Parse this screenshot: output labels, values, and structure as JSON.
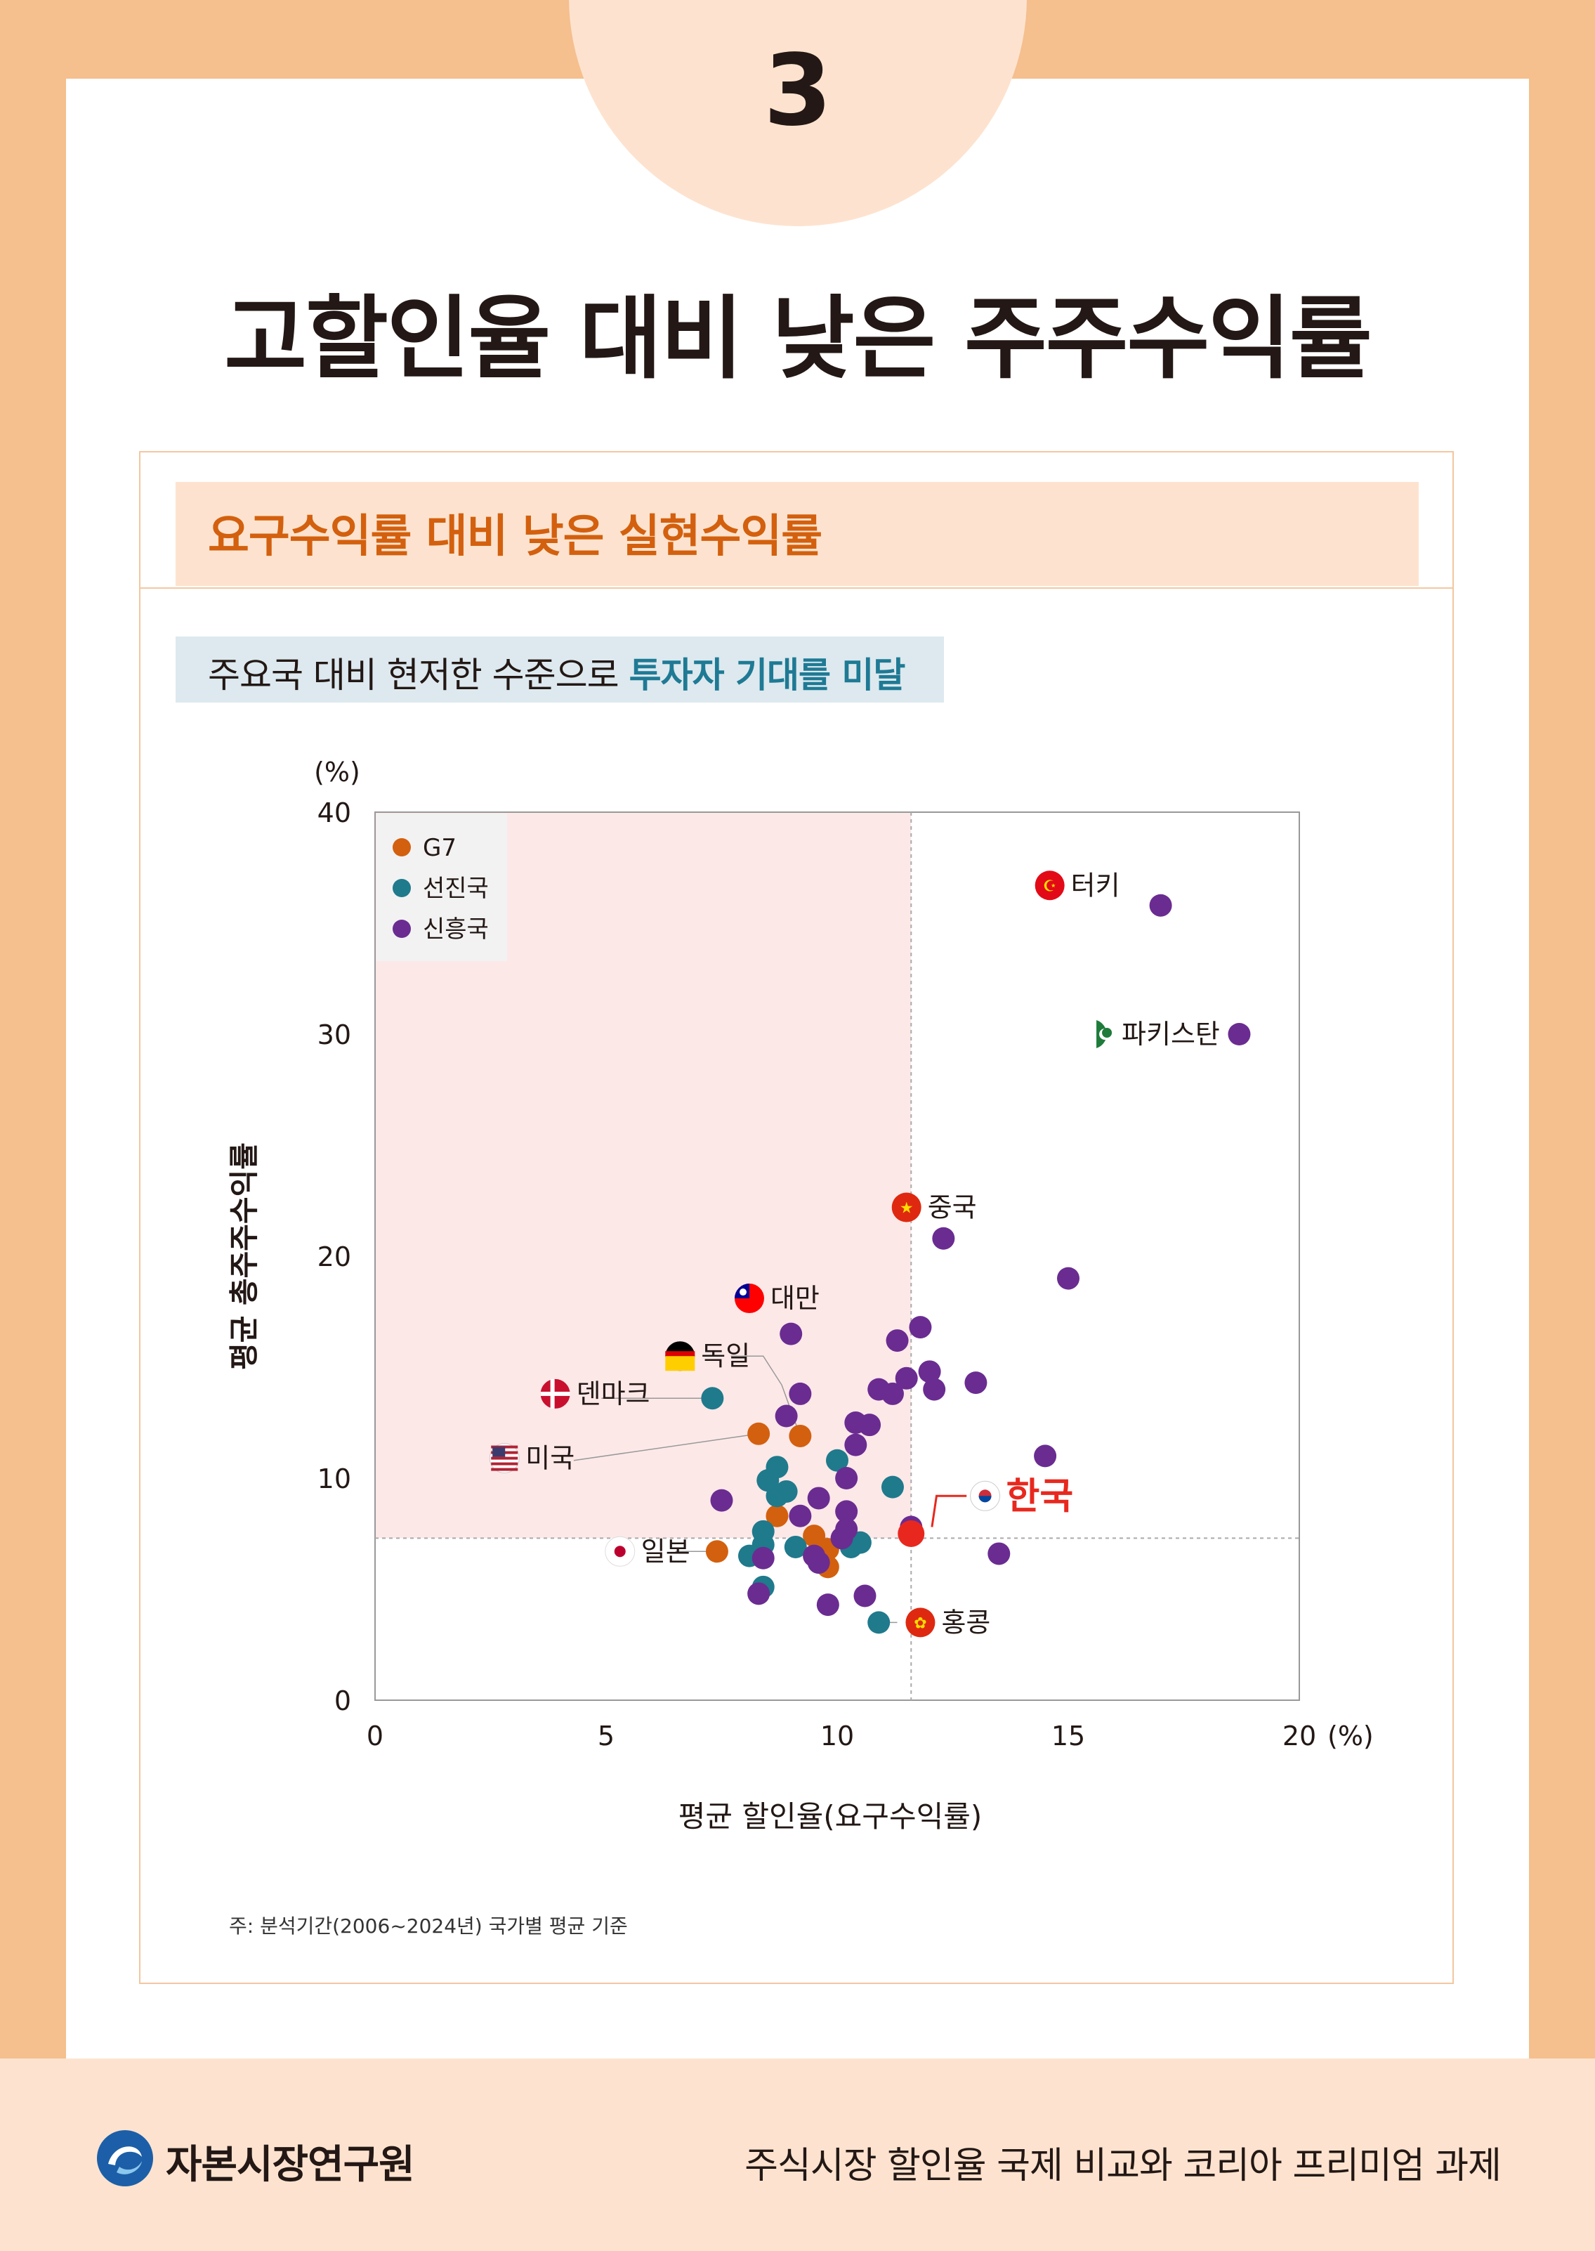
{
  "page": {
    "section_number": "3",
    "title": "고할인율 대비 낮은 주주수익률",
    "box_title": "요구수익률 대비 낮은 실현수익률",
    "subtitle_prefix": "주요국 대비 현저한 수준으로 ",
    "subtitle_highlight": "투자자 기대를 미달",
    "note": "주: 분석기간(2006~2024년) 국가별 평균 기준"
  },
  "footer": {
    "org_name": "자본시장연구원",
    "publication": "주식시장 할인율 국제 비교와 코리아 프리미엄 과제"
  },
  "colors": {
    "g7": "#D3600E",
    "advanced": "#1F7A8C",
    "emerging": "#6A2C91",
    "korea": "#E8281E",
    "quadrant": "#FDE8E8",
    "accent_title": "#D3600E",
    "accent_subtitle": "#1F7A94"
  },
  "chart_data": {
    "type": "scatter",
    "xlabel": "평균 할인율(요구수익률)",
    "ylabel": "평균 총주주수익률",
    "x_unit": "(%)",
    "y_unit": "(%)",
    "xlim": [
      0,
      20
    ],
    "ylim": [
      0,
      40
    ],
    "xticks": [
      "0",
      "5",
      "10",
      "15",
      "20"
    ],
    "yticks": [
      "0",
      "10",
      "20",
      "30",
      "40"
    ],
    "grid": false,
    "reference_lines": {
      "x": 11.6,
      "y": 7.3
    },
    "legend_position": "top-left",
    "legend": [
      "G7",
      "선진국",
      "신흥국"
    ],
    "series": [
      {
        "name": "G7",
        "points": [
          [
            8.3,
            12.0
          ],
          [
            9.2,
            11.9
          ],
          [
            7.4,
            6.7
          ],
          [
            8.7,
            8.3
          ],
          [
            9.5,
            7.4
          ],
          [
            9.8,
            6.0
          ],
          [
            9.8,
            6.8
          ]
        ]
      },
      {
        "name": "선진국",
        "points": [
          [
            7.3,
            13.6
          ],
          [
            8.7,
            10.5
          ],
          [
            8.5,
            9.9
          ],
          [
            8.9,
            9.4
          ],
          [
            8.7,
            9.2
          ],
          [
            8.4,
            7.6
          ],
          [
            8.4,
            7.0
          ],
          [
            8.1,
            6.5
          ],
          [
            8.4,
            5.1
          ],
          [
            9.1,
            6.9
          ],
          [
            10.0,
            10.8
          ],
          [
            11.2,
            9.6
          ],
          [
            10.5,
            7.1
          ],
          [
            10.3,
            6.9
          ],
          [
            10.9,
            3.5
          ]
        ]
      },
      {
        "name": "신흥국",
        "points": [
          [
            17.0,
            35.8
          ],
          [
            18.7,
            30.0
          ],
          [
            12.3,
            20.8
          ],
          [
            15.0,
            19.0
          ],
          [
            9.0,
            16.5
          ],
          [
            11.3,
            16.2
          ],
          [
            11.8,
            16.8
          ],
          [
            12.0,
            14.8
          ],
          [
            11.5,
            14.5
          ],
          [
            12.1,
            14.0
          ],
          [
            13.0,
            14.3
          ],
          [
            10.9,
            14.0
          ],
          [
            11.2,
            13.8
          ],
          [
            9.2,
            13.8
          ],
          [
            8.9,
            12.8
          ],
          [
            10.4,
            12.5
          ],
          [
            10.7,
            12.4
          ],
          [
            10.4,
            11.5
          ],
          [
            14.5,
            11.0
          ],
          [
            10.2,
            10.0
          ],
          [
            7.5,
            9.0
          ],
          [
            9.6,
            9.1
          ],
          [
            10.2,
            8.5
          ],
          [
            9.2,
            8.3
          ],
          [
            11.6,
            7.8
          ],
          [
            10.2,
            7.7
          ],
          [
            10.1,
            7.3
          ],
          [
            9.5,
            6.5
          ],
          [
            9.6,
            6.2
          ],
          [
            8.4,
            6.4
          ],
          [
            13.5,
            6.6
          ],
          [
            10.6,
            4.7
          ],
          [
            8.3,
            4.8
          ],
          [
            9.8,
            4.3
          ]
        ]
      },
      {
        "name": "한국",
        "points": [
          [
            11.6,
            7.5
          ]
        ]
      }
    ],
    "annotations": [
      {
        "label": "터키",
        "x": 14.6,
        "y": 36.7
      },
      {
        "label": "파키스탄",
        "x": 15.7,
        "y": 30.0
      },
      {
        "label": "중국",
        "x": 11.5,
        "y": 22.2
      },
      {
        "label": "대만",
        "x": 8.1,
        "y": 18.1
      },
      {
        "label": "독일",
        "x": 6.6,
        "y": 15.5
      },
      {
        "label": "덴마크",
        "x": 3.9,
        "y": 13.8
      },
      {
        "label": "미국",
        "x": 2.8,
        "y": 10.9
      },
      {
        "label": "일본",
        "x": 5.3,
        "y": 6.7
      },
      {
        "label": "홍콩",
        "x": 11.8,
        "y": 3.5
      },
      {
        "label": "한국",
        "x": 13.2,
        "y": 9.2
      }
    ]
  }
}
